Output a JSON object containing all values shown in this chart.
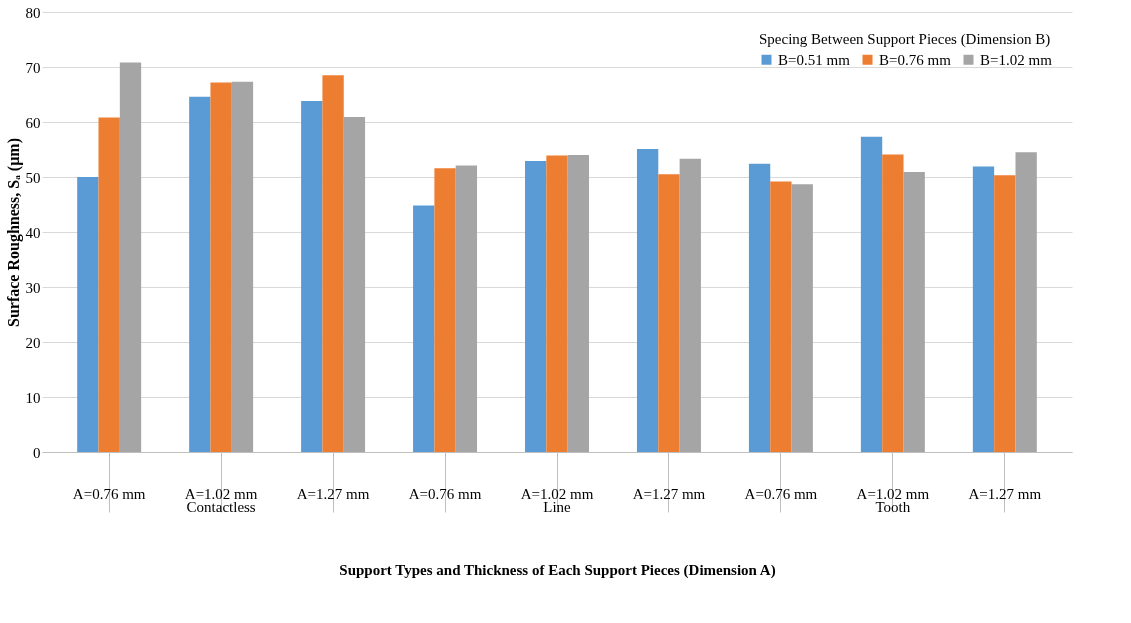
{
  "chart_data": {
    "type": "bar",
    "xlabel": "Support Types and Thickness of Each Support Pieces (Dimension A)",
    "ylabel": "Surface Roughness, Sₐ (µm)",
    "legend_title": "Specing Between Support Pieces (Dimension B)",
    "categories": [
      "A=0.76 mm",
      "A=1.02 mm",
      "A=1.27 mm",
      "A=0.76 mm",
      "A=1.02 mm",
      "A=1.27 mm",
      "A=0.76 mm",
      "A=1.02 mm",
      "A=1.27 mm"
    ],
    "series": [
      {
        "name": "B=0.51 mm",
        "color": "#5b9bd5",
        "values": [
          50.0,
          64.6,
          63.8,
          44.8,
          52.9,
          55.1,
          52.4,
          57.3,
          51.9
        ]
      },
      {
        "name": "B=0.76 mm",
        "color": "#ed7d31",
        "values": [
          60.8,
          67.2,
          68.5,
          51.6,
          53.9,
          50.5,
          49.2,
          54.1,
          50.3
        ]
      },
      {
        "name": "B=1.02 mm",
        "color": "#a5a5a5",
        "values": [
          70.8,
          67.3,
          60.9,
          52.1,
          54.0,
          53.3,
          48.7,
          50.9,
          54.5
        ]
      }
    ],
    "annotations": [
      "Contactless",
      "Line",
      "Tooth"
    ],
    "ylim": [
      0,
      80
    ],
    "yticks": [
      0,
      10,
      20,
      30,
      40,
      50,
      60,
      70,
      80
    ],
    "grid": "y",
    "legend": "top right"
  }
}
